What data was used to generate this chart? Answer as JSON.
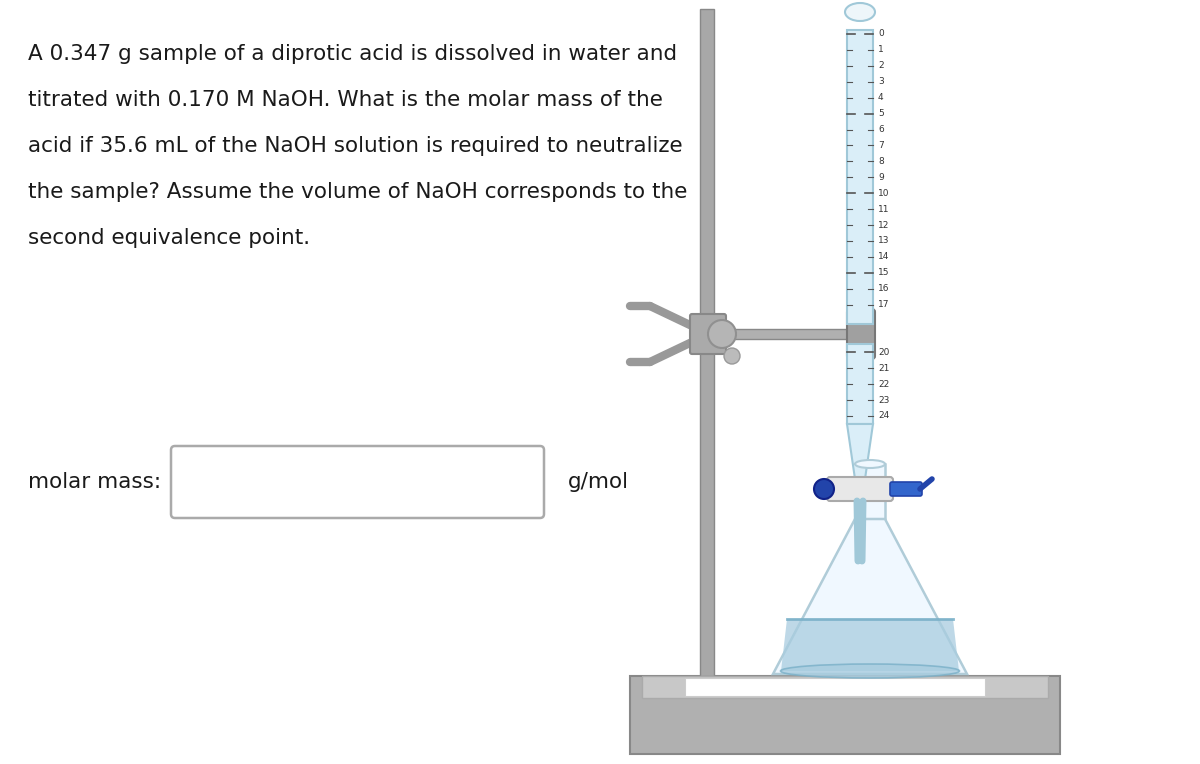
{
  "background_color": "#ffffff",
  "text_lines": [
    "A 0.347 g sample of a diprotic acid is dissolved in water and",
    "titrated with 0.170 M NaOH. What is the molar mass of the",
    "acid if 35.6 mL of the NaOH solution is required to neutralize",
    "the sample? Assume the volume of NaOH corresponds to the",
    "second equivalence point."
  ],
  "label_text": "molar mass:",
  "unit_text": "g/mol",
  "text_fontsize": 15.5,
  "label_fontsize": 15.5,
  "text_color": "#1a1a1a",
  "box_edge_color": "#aaaaaa",
  "box_face_color": "#ffffff",
  "stand_color": "#a8a8a8",
  "stand_edge": "#888888",
  "base_color": "#b0b0b0",
  "base_top_color": "#c8c8c8",
  "base_white": "#f5f5f5",
  "burette_fill": "#daeef8",
  "burette_edge": "#a0c8d8",
  "burette_glass": "#eef6fa",
  "clamp_color": "#aaaaaa",
  "flask_edge": "#b0ccd8",
  "flask_fill": "#f0f8ff",
  "liquid_color": "#a8ccdf",
  "stopcock_color": "#4466bb",
  "stopcock_edge": "#2244aa",
  "tick_color": "#555555",
  "num_color": "#333333"
}
